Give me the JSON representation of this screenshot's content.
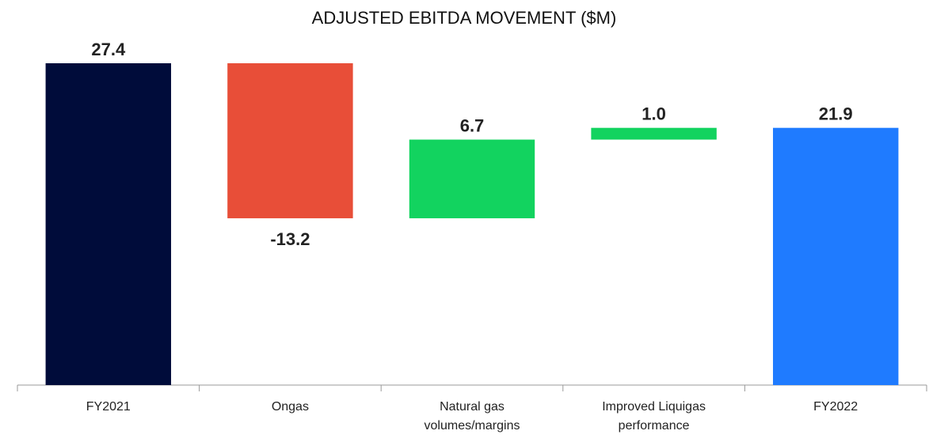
{
  "chart_data": {
    "type": "waterfall",
    "title": "ADJUSTED EBITDA MOVEMENT ($M)",
    "categories": [
      "FY2021",
      "Ongas",
      "Natural gas volumes/margins",
      "Improved Liquigas performance",
      "FY2022"
    ],
    "values": [
      27.4,
      -13.2,
      6.7,
      1.0,
      21.9
    ],
    "value_labels": [
      "27.4",
      "-13.2",
      "6.7",
      "1.0",
      "21.9"
    ],
    "measure": [
      "absolute",
      "relative",
      "relative",
      "relative",
      "total"
    ],
    "colors": [
      "#000c3a",
      "#e84e38",
      "#12d35f",
      "#12d35f",
      "#1f7bff"
    ]
  }
}
